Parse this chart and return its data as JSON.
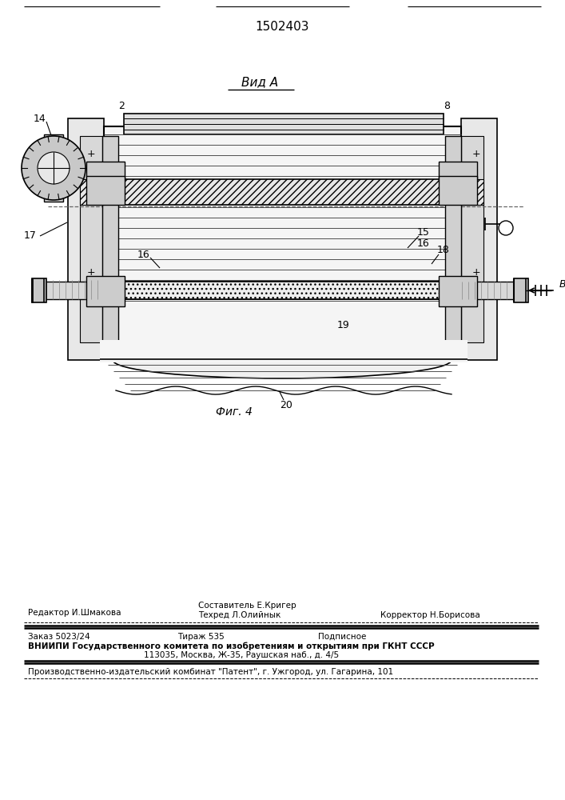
{
  "patent_number": "1502403",
  "view_label": "Вид А",
  "fig_label": "Фиг. 4",
  "bg": "#ffffff",
  "lc": "#000000",
  "footer_line1_left": "Редактор И.Шмакова",
  "footer_line1_center_top": "Составитель Е.Кригер",
  "footer_line1_center": "Техред Л.Олийнык",
  "footer_line1_right": "Корректор Н.Борисова",
  "footer_line2_left": "Заказ 5023/24",
  "footer_line2_center": "Тираж 535",
  "footer_line2_right": "Подписное",
  "footer_line3": "ВНИИПИ Государственного комитета по изобретениям и открытиям при ГКНТ СССР",
  "footer_line4": "113035, Москва, Ж-35, Раушская наб., д. 4/5",
  "footer_line5": "Производственно-издательский комбинат \"Патент\", г. Ужгород, ул. Гагарина, 101"
}
